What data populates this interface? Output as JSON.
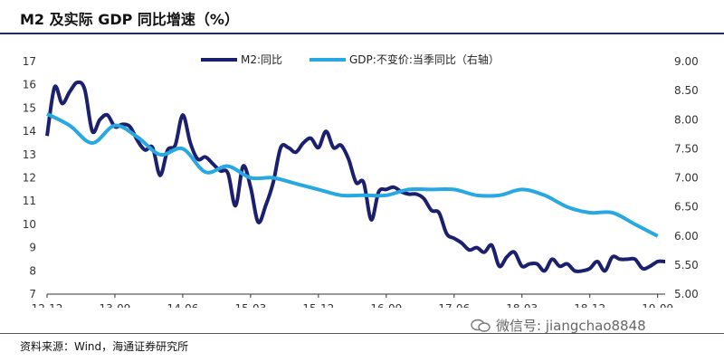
{
  "title": "M2 及实际 GDP 同比增速（%）",
  "source": "资料来源：Wind，海通证券研究所",
  "watermark": "微信号: jiangchao8848",
  "colors": {
    "m2": "#1a1f6e",
    "gdp": "#28a8e0",
    "rule": "#1f2f5c"
  },
  "chart_data": {
    "type": "line",
    "title": "M2 及实际 GDP 同比增速（%）",
    "x_ticks": [
      "12-12",
      "13-09",
      "14-06",
      "15-03",
      "15-12",
      "16-09",
      "17-06",
      "18-03",
      "18-12",
      "19-09"
    ],
    "x_range": [
      "2012-12",
      "2019-10"
    ],
    "y_left": {
      "ticks": [
        7,
        8,
        9,
        10,
        11,
        12,
        13,
        14,
        15,
        16,
        17
      ],
      "range": [
        7,
        17
      ]
    },
    "y_right": {
      "ticks": [
        "5.00",
        "5.50",
        "6.00",
        "6.50",
        "7.00",
        "7.50",
        "8.00",
        "8.50",
        "9.00"
      ],
      "range": [
        5.0,
        9.0
      ]
    },
    "legend": {
      "placement": "top"
    },
    "series": [
      {
        "name": "M2:同比",
        "axis": "left",
        "x": [
          "2012-12",
          "2013-01",
          "2013-02",
          "2013-03",
          "2013-04",
          "2013-05",
          "2013-06",
          "2013-07",
          "2013-08",
          "2013-09",
          "2013-10",
          "2013-11",
          "2013-12",
          "2014-01",
          "2014-02",
          "2014-03",
          "2014-04",
          "2014-05",
          "2014-06",
          "2014-07",
          "2014-08",
          "2014-09",
          "2014-10",
          "2014-11",
          "2014-12",
          "2015-01",
          "2015-02",
          "2015-03",
          "2015-04",
          "2015-05",
          "2015-06",
          "2015-07",
          "2015-08",
          "2015-09",
          "2015-10",
          "2015-11",
          "2015-12",
          "2016-01",
          "2016-02",
          "2016-03",
          "2016-04",
          "2016-05",
          "2016-06",
          "2016-07",
          "2016-08",
          "2016-09",
          "2016-10",
          "2016-11",
          "2016-12",
          "2017-01",
          "2017-02",
          "2017-03",
          "2017-04",
          "2017-05",
          "2017-06",
          "2017-07",
          "2017-08",
          "2017-09",
          "2017-10",
          "2017-11",
          "2017-12",
          "2018-01",
          "2018-02",
          "2018-03",
          "2018-04",
          "2018-05",
          "2018-06",
          "2018-07",
          "2018-08",
          "2018-09",
          "2018-10",
          "2018-11",
          "2018-12",
          "2019-01",
          "2019-02",
          "2019-03",
          "2019-04",
          "2019-05",
          "2019-06",
          "2019-07",
          "2019-08",
          "2019-09",
          "2019-10"
        ],
        "y": [
          13.8,
          15.9,
          15.2,
          15.7,
          16.1,
          15.8,
          14.0,
          14.5,
          14.7,
          14.2,
          14.3,
          14.2,
          13.6,
          13.2,
          13.3,
          12.1,
          13.2,
          13.4,
          14.7,
          13.5,
          12.8,
          12.9,
          12.6,
          12.3,
          12.2,
          10.8,
          12.5,
          11.6,
          10.1,
          10.8,
          11.8,
          13.3,
          13.3,
          13.1,
          13.5,
          13.7,
          13.3,
          14.0,
          13.3,
          13.4,
          12.8,
          11.8,
          11.8,
          10.2,
          11.4,
          11.5,
          11.6,
          11.4,
          11.3,
          11.3,
          11.1,
          10.6,
          10.5,
          9.6,
          9.4,
          9.2,
          8.9,
          9.0,
          8.8,
          9.1,
          8.2,
          8.6,
          8.8,
          8.2,
          8.3,
          8.3,
          8.0,
          8.5,
          8.2,
          8.3,
          8.0,
          8.0,
          8.1,
          8.4,
          8.0,
          8.6,
          8.5,
          8.5,
          8.5,
          8.1,
          8.2,
          8.4,
          8.4
        ]
      },
      {
        "name": "GDP:不变价:当季同比（右轴）",
        "axis": "right",
        "x": [
          "2012-12",
          "2013-03",
          "2013-06",
          "2013-09",
          "2013-12",
          "2014-03",
          "2014-06",
          "2014-09",
          "2014-12",
          "2015-03",
          "2015-06",
          "2015-09",
          "2015-12",
          "2016-03",
          "2016-06",
          "2016-09",
          "2016-12",
          "2017-03",
          "2017-06",
          "2017-09",
          "2017-12",
          "2018-03",
          "2018-06",
          "2018-09",
          "2018-12",
          "2019-03",
          "2019-06",
          "2019-09"
        ],
        "y": [
          8.1,
          7.9,
          7.6,
          7.9,
          7.7,
          7.4,
          7.5,
          7.1,
          7.2,
          7.0,
          7.0,
          6.9,
          6.8,
          6.7,
          6.7,
          6.7,
          6.8,
          6.8,
          6.8,
          6.7,
          6.7,
          6.8,
          6.7,
          6.5,
          6.4,
          6.4,
          6.2,
          6.0
        ]
      }
    ]
  }
}
